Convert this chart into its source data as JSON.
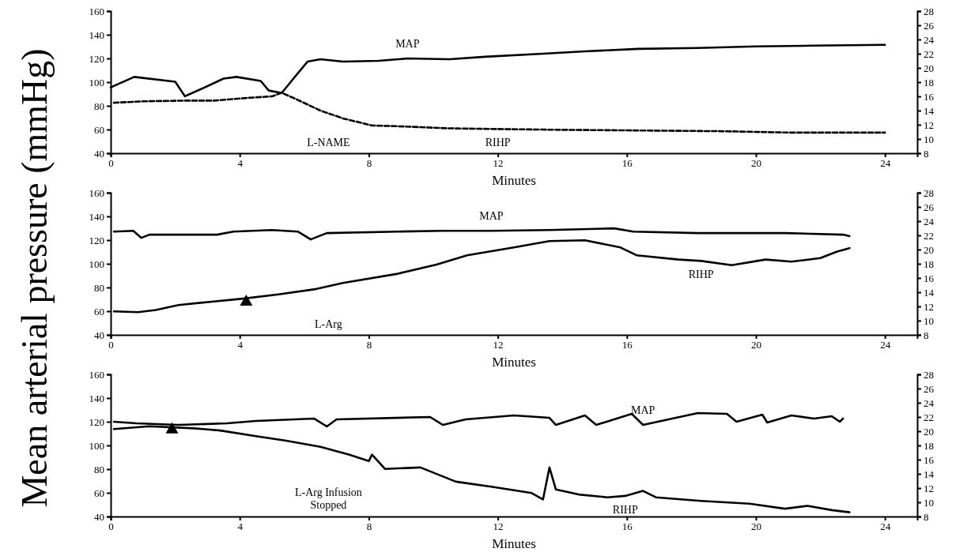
{
  "chart_data": [
    {
      "type": "line",
      "xlabel": "Minutes",
      "xlim": [
        0,
        25
      ],
      "xticks": [
        0,
        4,
        8,
        12,
        16,
        20,
        24
      ],
      "ylim": [
        40,
        160
      ],
      "yticks": [
        40,
        60,
        80,
        100,
        120,
        140,
        160
      ],
      "y2lim": [
        8,
        28
      ],
      "y2ticks": [
        8,
        10,
        12,
        14,
        16,
        18,
        20,
        22,
        24,
        26,
        28
      ],
      "series": [
        {
          "name": "MAP",
          "color": "#000000",
          "x": [
            0,
            0.73,
            2.0,
            2.3,
            2.8,
            3.5,
            3.9,
            4.65,
            4.9,
            5.3,
            5.75,
            6.1,
            6.5,
            7.2,
            8.3,
            9.2,
            10.5,
            11.6,
            13.4,
            14.7,
            16.35,
            18.2,
            20.0,
            21.8,
            24.0
          ],
          "values": [
            95.6,
            104.4,
            100.3,
            88.1,
            94.2,
            103,
            104.4,
            101,
            92.9,
            90.8,
            105.8,
            117.3,
            119.3,
            117.3,
            118,
            120,
            119.3,
            121.4,
            124,
            126,
            128.1,
            128.8,
            130.2,
            130.8,
            131.5
          ]
        },
        {
          "name": "RIHP",
          "color": "#000000",
          "axis": "y2",
          "line_style": "dashed",
          "x": [
            0.1,
            1.0,
            2.3,
            3.2,
            4.3,
            5.0,
            5.3,
            5.75,
            6.5,
            7.2,
            8.1,
            8.85,
            10.5,
            12.0,
            13.8,
            16.35,
            18.9,
            21.1,
            24.0
          ],
          "values": [
            15.1,
            15.3,
            15.4,
            15.4,
            15.8,
            16.0,
            16.5,
            15.6,
            14.0,
            12.9,
            11.9,
            11.8,
            11.5,
            11.4,
            11.3,
            11.2,
            11.1,
            10.9,
            10.9
          ]
        }
      ],
      "annotations": [
        "L-NAME"
      ]
    },
    {
      "type": "line",
      "xlabel": "Minutes",
      "ylabel": "Mean arterial pressure (mmHg)",
      "xlim": [
        0,
        25
      ],
      "xticks": [
        0,
        4,
        8,
        12,
        16,
        20,
        24
      ],
      "ylim": [
        40,
        160
      ],
      "yticks": [
        40,
        60,
        80,
        100,
        120,
        140,
        160
      ],
      "y2lim": [
        8,
        28
      ],
      "y2ticks": [
        8,
        10,
        12,
        14,
        16,
        18,
        20,
        22,
        24,
        26,
        28
      ],
      "series": [
        {
          "name": "MAP",
          "color": "#000000",
          "x": [
            0.1,
            0.7,
            0.95,
            1.2,
            3.3,
            3.8,
            5.0,
            5.8,
            6.2,
            6.7,
            8.9,
            10.3,
            11.8,
            13.6,
            15.6,
            16.2,
            18.2,
            20.9,
            22.7,
            22.9
          ],
          "values": [
            127.2,
            127.8,
            121.9,
            124.6,
            124.6,
            127.2,
            128.5,
            127.2,
            120.6,
            125.9,
            127.2,
            127.8,
            127.8,
            128.5,
            129.9,
            127.2,
            125.9,
            125.9,
            124.6,
            123.3
          ]
        },
        {
          "name": "RIHP",
          "color": "#000000",
          "axis": "y2",
          "x": [
            0.1,
            0.85,
            1.4,
            2.1,
            3.2,
            4.1,
            5.2,
            6.3,
            7.2,
            8.9,
            10.1,
            11.05,
            12.5,
            13.6,
            14.7,
            15.8,
            16.3,
            17.6,
            18.3,
            19.25,
            20.3,
            21.1,
            22.0,
            22.5,
            22.9
          ],
          "values": [
            11.3,
            11.2,
            11.5,
            12.2,
            12.7,
            13.1,
            13.7,
            14.4,
            15.3,
            16.6,
            17.9,
            19.2,
            20.3,
            21.2,
            21.3,
            20.3,
            19.2,
            18.6,
            18.4,
            17.8,
            18.6,
            18.3,
            18.8,
            19.7,
            20.2
          ]
        },
        {
          "type": "scatter",
          "marker": "triangle",
          "color": "#000000",
          "x": [
            4.2
          ],
          "values": [
            67.8
          ]
        }
      ],
      "annotations": [
        "L-Arg"
      ]
    },
    {
      "type": "line",
      "xlabel": "Minutes",
      "xlim": [
        0,
        25
      ],
      "xticks": [
        0,
        4,
        8,
        12,
        16,
        20,
        24
      ],
      "ylim": [
        40,
        160
      ],
      "yticks": [
        40,
        60,
        80,
        100,
        120,
        140,
        160
      ],
      "y2lim": [
        8,
        28
      ],
      "y2ticks": [
        8,
        10,
        12,
        14,
        16,
        18,
        20,
        22,
        24,
        26,
        28
      ],
      "series": [
        {
          "name": "MAP",
          "color": "#000000",
          "x": [
            0.1,
            0.8,
            2.1,
            3.6,
            4.5,
            6.3,
            6.7,
            7.0,
            9.9,
            10.3,
            11.0,
            12.5,
            13.6,
            13.8,
            14.7,
            15.05,
            16.15,
            16.5,
            18.2,
            19.1,
            19.4,
            20.2,
            20.35,
            21.1,
            21.8,
            22.35,
            22.6,
            22.7
          ],
          "values": [
            120,
            118.7,
            117.3,
            118.7,
            120.7,
            122.7,
            116,
            122,
            124,
            117.3,
            122,
            125.3,
            123.3,
            117.3,
            125.3,
            117.3,
            126.7,
            117.3,
            127.3,
            126.7,
            120,
            126,
            119.3,
            125.3,
            122.7,
            124.7,
            120,
            122.7
          ]
        },
        {
          "name": "RIHP",
          "color": "#000000",
          "axis": "y2",
          "x": [
            0.1,
            1.2,
            2.6,
            3.4,
            4.5,
            5.4,
            6.5,
            7.4,
            8.0,
            8.1,
            8.5,
            9.6,
            10.7,
            11.8,
            13.05,
            13.4,
            13.6,
            13.8,
            14.5,
            15.4,
            15.95,
            16.5,
            16.9,
            18.3,
            19.8,
            20.9,
            21.6,
            22.35,
            22.9
          ],
          "values": [
            20.3,
            20.7,
            20.4,
            20.1,
            19.3,
            18.7,
            17.8,
            16.7,
            15.8,
            16.7,
            14.7,
            14.9,
            12.9,
            12.2,
            11.3,
            10.4,
            14.9,
            11.8,
            11.1,
            10.7,
            10.9,
            11.6,
            10.7,
            10.2,
            9.8,
            9.1,
            9.5,
            8.9,
            8.6
          ]
        },
        {
          "type": "scatter",
          "marker": "triangle",
          "color": "#000000",
          "x": [
            1.9
          ],
          "values": [
            113.3
          ]
        }
      ],
      "annotations": [
        "L-Arg Infusion\nStopped"
      ]
    }
  ]
}
